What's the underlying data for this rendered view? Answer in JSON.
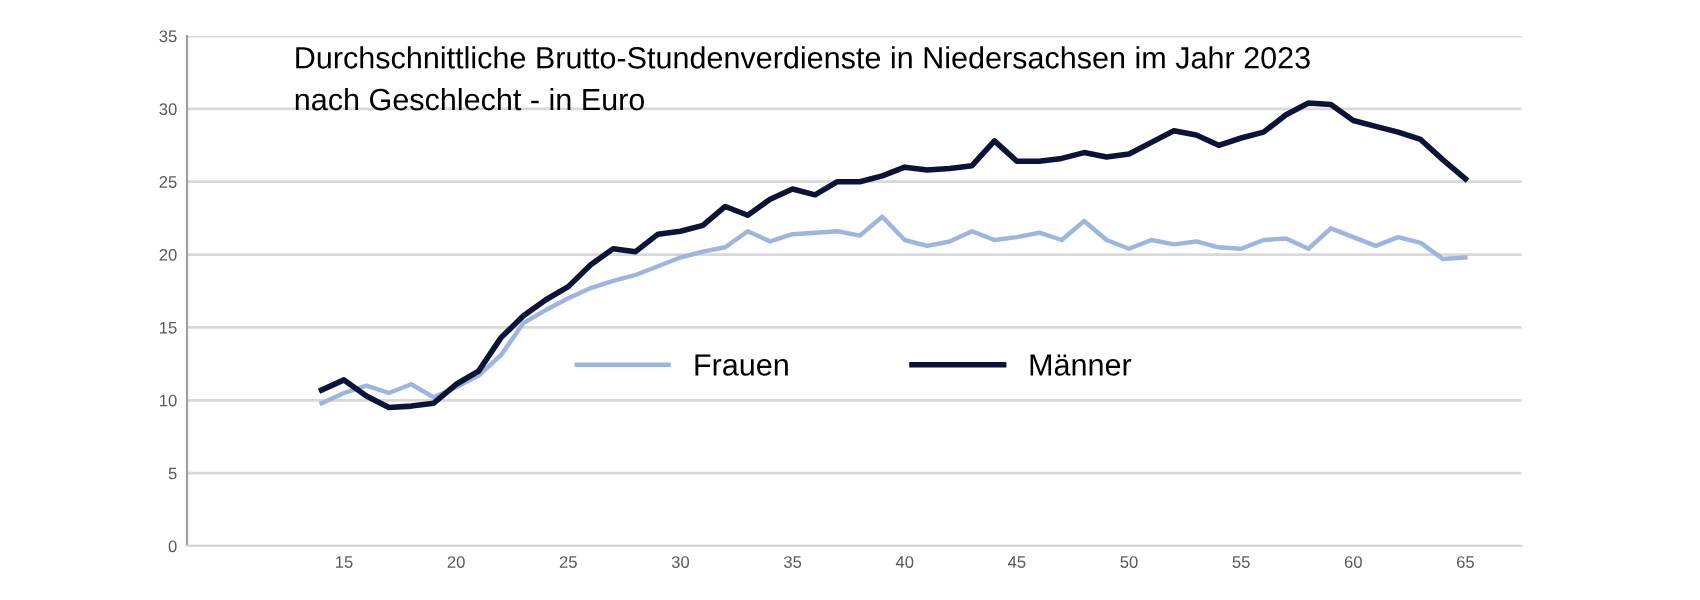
{
  "chart_data": {
    "type": "line",
    "title": "Durchschnittliche Brutto-Stundenverdienste in Niedersachsen im Jahr 2023\nnach Geschlecht - in Euro",
    "x": [
      14,
      15,
      16,
      17,
      18,
      19,
      20,
      21,
      22,
      23,
      24,
      25,
      26,
      27,
      28,
      29,
      30,
      31,
      32,
      33,
      34,
      35,
      36,
      37,
      38,
      39,
      40,
      41,
      42,
      43,
      44,
      45,
      46,
      47,
      48,
      49,
      50,
      51,
      52,
      53,
      54,
      55,
      56,
      57,
      58,
      59,
      60,
      61,
      62,
      63,
      64,
      65
    ],
    "series": [
      {
        "name": "Frauen",
        "color": "#9db5e0",
        "values": [
          9.8,
          10.5,
          11.0,
          10.5,
          11.1,
          10.2,
          10.9,
          11.7,
          13.1,
          15.3,
          16.2,
          17.0,
          17.7,
          18.2,
          18.6,
          19.2,
          19.8,
          20.2,
          20.5,
          21.6,
          20.9,
          21.4,
          21.5,
          21.6,
          21.3,
          22.6,
          21.0,
          20.6,
          20.9,
          21.6,
          21.0,
          21.2,
          21.5,
          21.0,
          22.3,
          21.0,
          20.4,
          21.0,
          20.7,
          20.9,
          20.5,
          20.4,
          21.0,
          21.1,
          20.4,
          21.8,
          21.2,
          20.6,
          21.2,
          20.8,
          19.7,
          19.8
        ]
      },
      {
        "name": "Männer",
        "color": "#0b1438",
        "values": [
          10.7,
          11.4,
          10.3,
          9.5,
          9.6,
          9.8,
          11.1,
          12.0,
          14.3,
          15.8,
          16.9,
          17.8,
          19.3,
          20.4,
          20.2,
          21.4,
          21.6,
          22.0,
          23.3,
          22.7,
          23.8,
          24.5,
          24.1,
          25.0,
          25.0,
          25.4,
          26.0,
          25.8,
          25.9,
          26.1,
          27.8,
          26.4,
          26.4,
          26.6,
          27.0,
          26.7,
          26.9,
          27.7,
          28.5,
          28.2,
          27.5,
          28.0,
          28.4,
          29.6,
          30.4,
          30.3,
          29.2,
          28.8,
          28.4,
          27.9,
          26.5,
          25.2
        ]
      }
    ],
    "xlim": [
      8,
      67.5
    ],
    "xticks": [
      15,
      20,
      25,
      30,
      35,
      40,
      45,
      50,
      55,
      60,
      65
    ],
    "ylim": [
      0,
      35
    ],
    "yticks": [
      0,
      5,
      10,
      15,
      20,
      25,
      30,
      35
    ],
    "grid": "y",
    "legend": "center",
    "marker": "none",
    "line_style": "solid"
  }
}
